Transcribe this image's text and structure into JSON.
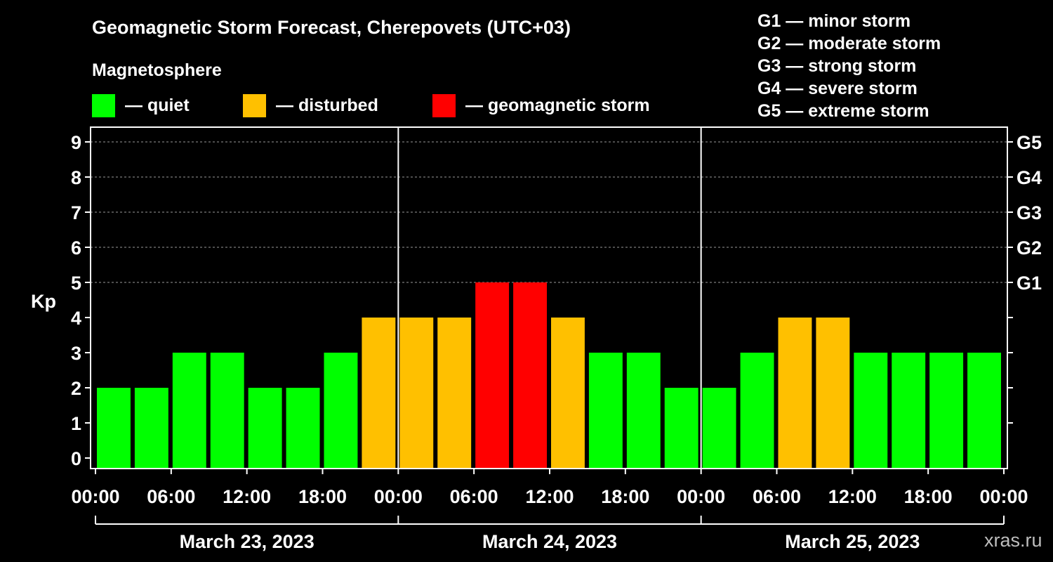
{
  "header": {
    "title": "Geomagnetic Storm Forecast, Cherepovets (UTC+03)",
    "subtitle": "Magnetosphere"
  },
  "legend": [
    {
      "label": "— quiet",
      "color": "#00ff00"
    },
    {
      "label": "— disturbed",
      "color": "#ffc000"
    },
    {
      "label": "— geomagnetic storm",
      "color": "#ff0000"
    }
  ],
  "storm_levels": [
    "G1 — minor storm",
    "G2 — moderate storm",
    "G3 — strong storm",
    "G4 — severe storm",
    "G5 — extreme storm"
  ],
  "watermark": "xras.ru",
  "colors": {
    "quiet": "#00ff00",
    "disturbed": "#ffc000",
    "storm": "#ff0000",
    "background": "#000000"
  },
  "chart_data": {
    "type": "bar",
    "ylabel": "Kp",
    "ylim": [
      0,
      9
    ],
    "yticks": [
      0,
      1,
      2,
      3,
      4,
      5,
      6,
      7,
      8,
      9
    ],
    "right_axis_labels": [
      {
        "kp": 5,
        "label": "G1"
      },
      {
        "kp": 6,
        "label": "G2"
      },
      {
        "kp": 7,
        "label": "G3"
      },
      {
        "kp": 8,
        "label": "G4"
      },
      {
        "kp": 9,
        "label": "G5"
      }
    ],
    "xtick_labels": [
      "00:00",
      "06:00",
      "12:00",
      "18:00",
      "00:00",
      "06:00",
      "12:00",
      "18:00",
      "00:00",
      "06:00",
      "12:00",
      "18:00",
      "00:00"
    ],
    "days": [
      "March 23, 2023",
      "March 24, 2023",
      "March 25, 2023"
    ],
    "grid": "horizontal dashed at Kp 5-9",
    "values": [
      2,
      2,
      3,
      3,
      2,
      2,
      3,
      4,
      4,
      4,
      5,
      5,
      4,
      3,
      3,
      2,
      2,
      3,
      4,
      4,
      3,
      3,
      3,
      3
    ]
  }
}
